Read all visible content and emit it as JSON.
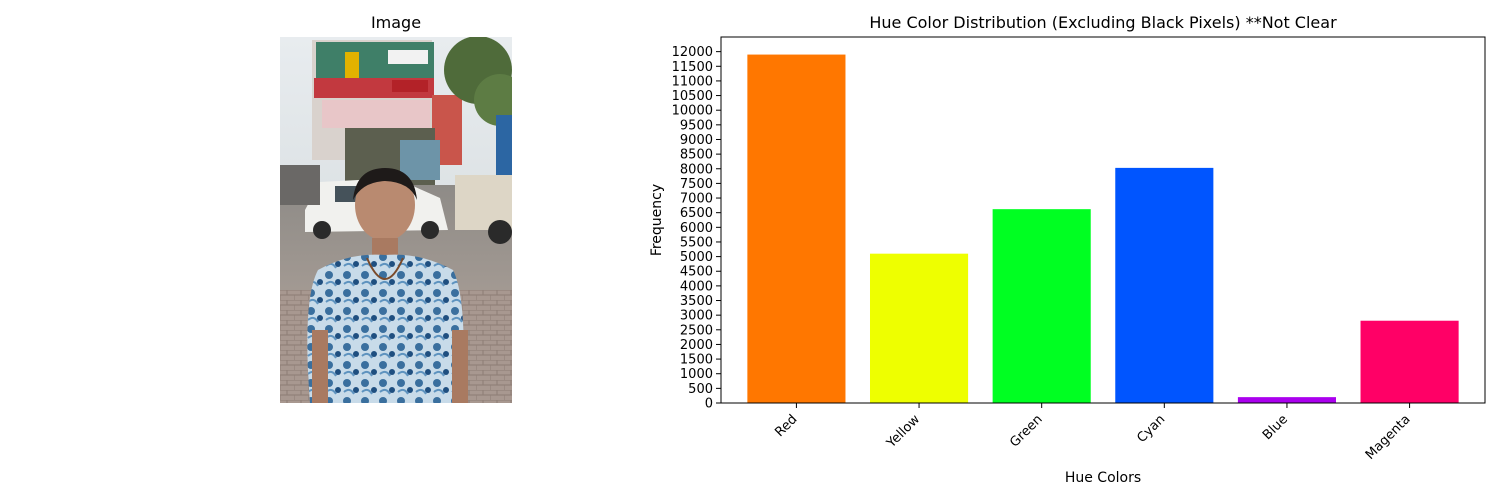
{
  "figure": {
    "left_panel": {
      "title": "Image"
    }
  },
  "chart_data": {
    "type": "bar",
    "title": "Hue Color Distribution (Excluding Black Pixels) **Not Clear",
    "xlabel": "Hue Colors",
    "ylabel": "Frequency",
    "categories": [
      "Red",
      "Yellow",
      "Green",
      "Cyan",
      "Blue",
      "Magenta"
    ],
    "values": [
      11900,
      5100,
      6620,
      8030,
      200,
      2810
    ],
    "colors": [
      "#ff7700",
      "#eeff00",
      "#00ff22",
      "#0055ff",
      "#aa00ee",
      "#ff0066"
    ],
    "ylim": [
      0,
      12500
    ],
    "yticks": [
      0,
      500,
      1000,
      1500,
      2000,
      2500,
      3000,
      3500,
      4000,
      4500,
      5000,
      5500,
      6000,
      6500,
      7000,
      7500,
      8000,
      8500,
      9000,
      9500,
      10000,
      10500,
      11000,
      11500,
      12000
    ],
    "grid": false,
    "legend": "none"
  }
}
